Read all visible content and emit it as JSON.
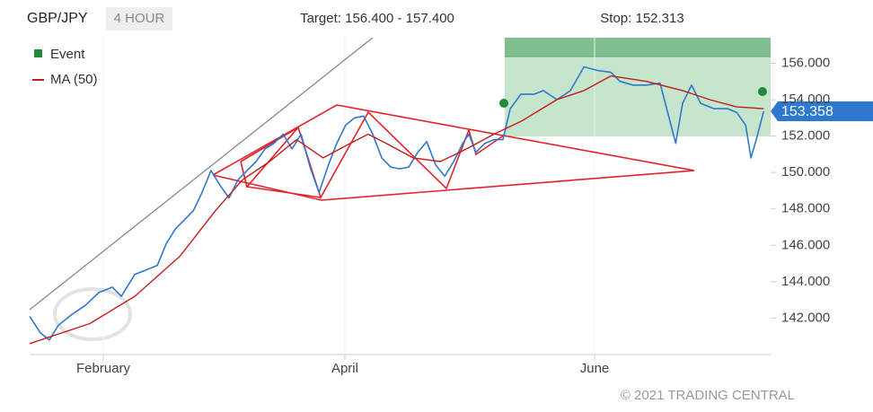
{
  "chart_data": {
    "type": "line",
    "symbol": "GBP/JPY",
    "timeframe": "4 HOUR",
    "annotations": [
      "Target: 156.400 - 157.400",
      "Stop: 152.313"
    ],
    "event_label": "Event",
    "copyright": "© 2021 TRADING CENTRAL",
    "xlim": [
      14,
      195
    ],
    "xticks": [
      {
        "value": 32,
        "label": "February"
      },
      {
        "value": 91,
        "label": "April"
      },
      {
        "value": 152,
        "label": "June"
      }
    ],
    "ylim": [
      140,
      157.5
    ],
    "yticks": [
      {
        "value": 142,
        "label": "142.000"
      },
      {
        "value": 144,
        "label": "144.000"
      },
      {
        "value": 146,
        "label": "146.000"
      },
      {
        "value": 148,
        "label": "148.000"
      },
      {
        "value": 150,
        "label": "150.000"
      },
      {
        "value": 152,
        "label": "152.000"
      },
      {
        "value": 154,
        "label": "154.000"
      },
      {
        "value": 156,
        "label": "156.000"
      }
    ],
    "xgrid": true,
    "series": [
      {
        "color": "#2f78d0",
        "x": [
          14.0,
          16.6,
          18.8,
          21.0,
          24.3,
          27.6,
          30.9,
          34.2,
          36.4,
          39.7,
          43.0,
          45.2,
          47.4,
          49.6,
          51.8,
          54.0,
          56.1,
          58.3,
          60.5,
          62.7,
          64.9,
          67.1,
          69.3,
          71.5,
          73.7,
          75.9,
          78.1,
          80.3,
          82.5,
          84.7,
          86.8,
          89.0,
          91.2,
          93.4,
          95.6,
          97.8,
          100.0,
          102.2,
          104.4,
          106.6,
          108.8,
          111.0,
          113.2,
          115.4,
          117.6,
          119.8,
          121.3,
          123.0,
          125.2,
          127.4,
          129.6,
          131.4,
          134.0,
          137.3,
          139.5,
          142.8,
          146.1,
          149.4,
          152.7,
          156.0,
          158.2,
          161.4,
          164.7,
          168.0,
          170.2,
          171.8,
          173.5,
          175.7,
          177.9,
          181.2,
          184.5,
          186.7,
          188.9,
          190.2,
          191.5,
          193.3
        ],
        "values": [
          142.1,
          141.2,
          140.8,
          141.6,
          142.2,
          142.7,
          143.4,
          143.7,
          143.2,
          144.4,
          144.7,
          144.9,
          146.1,
          146.9,
          147.4,
          147.9,
          148.9,
          150.1,
          149.3,
          148.6,
          149.6,
          150.1,
          150.6,
          151.3,
          151.6,
          152.1,
          151.3,
          152.1,
          150.3,
          148.9,
          150.3,
          151.6,
          152.6,
          153.0,
          153.1,
          152.1,
          150.8,
          150.3,
          150.2,
          150.3,
          151.1,
          151.7,
          150.4,
          149.8,
          150.6,
          151.6,
          152.1,
          151.1,
          151.6,
          151.8,
          151.8,
          153.5,
          154.3,
          154.3,
          154.5,
          154.0,
          154.5,
          155.8,
          155.6,
          155.5,
          155.0,
          154.8,
          154.8,
          154.9,
          153.0,
          151.6,
          153.8,
          154.8,
          153.8,
          153.5,
          153.5,
          153.3,
          152.6,
          150.8,
          151.8,
          153.358
        ]
      },
      {
        "name": "MA (50)",
        "color": "#c41b1b",
        "x": [
          14.0,
          28.7,
          39.7,
          50.7,
          59.4,
          66.0,
          72.6,
          79.2,
          85.7,
          92.3,
          96.7,
          101.1,
          107.7,
          114.3,
          120.8,
          127.4,
          134.0,
          142.8,
          149.4,
          156.0,
          164.7,
          173.5,
          180.1,
          186.7,
          193.3
        ],
        "values": [
          140.6,
          141.7,
          143.2,
          145.4,
          147.9,
          149.6,
          150.6,
          151.8,
          150.8,
          151.6,
          152.1,
          151.6,
          150.8,
          150.6,
          151.3,
          152.1,
          152.8,
          154.0,
          154.5,
          155.3,
          155.0,
          154.5,
          154.0,
          153.6,
          153.5
        ]
      }
    ]
  }
}
